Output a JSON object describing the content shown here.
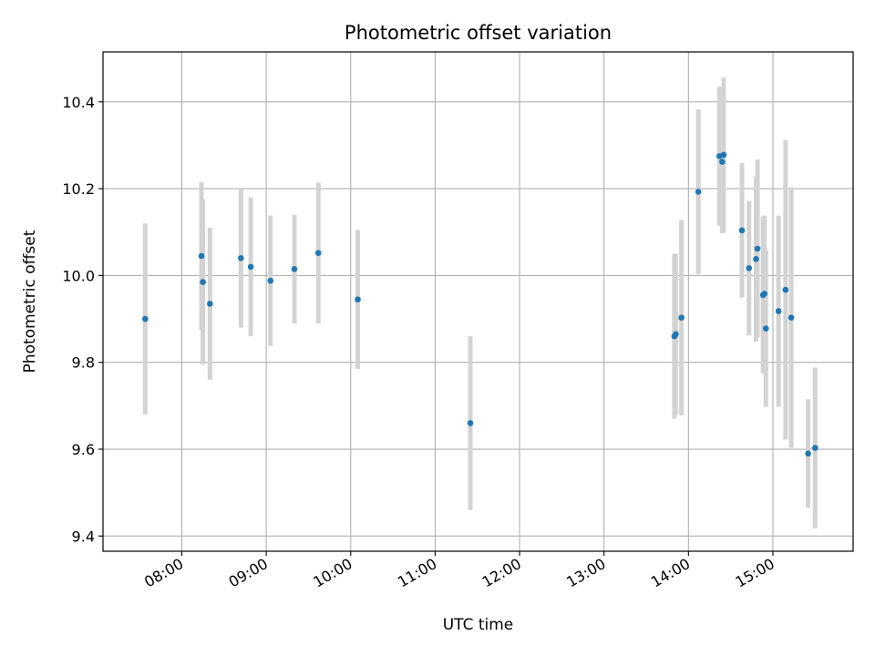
{
  "chart_data": {
    "type": "scatter",
    "title": "Photometric offset variation",
    "xlabel": "UTC time",
    "ylabel": "Photometric offset",
    "x_unit": "UTC time of day (HH:MM)",
    "xlim": [
      "07:04",
      "15:57"
    ],
    "ylim": [
      9.365,
      10.515
    ],
    "x_ticks": [
      "08:00",
      "09:00",
      "10:00",
      "11:00",
      "12:00",
      "13:00",
      "14:00",
      "15:00"
    ],
    "y_ticks": [
      9.4,
      9.6,
      9.8,
      10.0,
      10.2,
      10.4
    ],
    "y_tick_labels": [
      "9.4",
      "9.6",
      "9.8",
      "10.0",
      "10.2",
      "10.4"
    ],
    "grid": true,
    "x_tick_rotation": "30°",
    "point_color": "#1f77b4",
    "errorbar_color": "#d3d3d3",
    "series": [
      {
        "points": [
          {
            "x": "07:34",
            "y": 9.9,
            "err": 0.22
          },
          {
            "x": "08:14",
            "y": 10.045,
            "err": 0.17
          },
          {
            "x": "08:15",
            "y": 9.985,
            "err": 0.19
          },
          {
            "x": "08:20",
            "y": 9.935,
            "err": 0.175
          },
          {
            "x": "08:42",
            "y": 10.04,
            "err": 0.16
          },
          {
            "x": "08:49",
            "y": 10.02,
            "err": 0.16
          },
          {
            "x": "09:03",
            "y": 9.988,
            "err": 0.15
          },
          {
            "x": "09:20",
            "y": 10.015,
            "err": 0.125
          },
          {
            "x": "09:37",
            "y": 10.052,
            "err": 0.162
          },
          {
            "x": "10:05",
            "y": 9.945,
            "err": 0.16
          },
          {
            "x": "11:25",
            "y": 9.66,
            "err": 0.2
          },
          {
            "x": "13:50",
            "y": 9.86,
            "err": 0.19
          },
          {
            "x": "13:51",
            "y": 9.865,
            "err": 0.185
          },
          {
            "x": "13:55",
            "y": 9.903,
            "err": 0.225
          },
          {
            "x": "14:07",
            "y": 10.193,
            "err": 0.19
          },
          {
            "x": "14:22",
            "y": 10.275,
            "err": 0.16
          },
          {
            "x": "14:24",
            "y": 10.262,
            "err": 0.165
          },
          {
            "x": "14:25",
            "y": 10.278,
            "err": 0.178
          },
          {
            "x": "14:38",
            "y": 10.104,
            "err": 0.155
          },
          {
            "x": "14:43",
            "y": 10.017,
            "err": 0.155
          },
          {
            "x": "14:48",
            "y": 10.038,
            "err": 0.19
          },
          {
            "x": "14:49",
            "y": 10.062,
            "err": 0.205
          },
          {
            "x": "14:53",
            "y": 9.955,
            "err": 0.18
          },
          {
            "x": "14:54",
            "y": 9.958,
            "err": 0.18
          },
          {
            "x": "14:55",
            "y": 9.878,
            "err": 0.18
          },
          {
            "x": "15:04",
            "y": 9.918,
            "err": 0.22
          },
          {
            "x": "15:09",
            "y": 9.967,
            "err": 0.345
          },
          {
            "x": "15:13",
            "y": 9.903,
            "err": 0.3
          },
          {
            "x": "15:25",
            "y": 9.59,
            "err": 0.125
          },
          {
            "x": "15:30",
            "y": 9.603,
            "err": 0.185
          }
        ]
      }
    ]
  }
}
